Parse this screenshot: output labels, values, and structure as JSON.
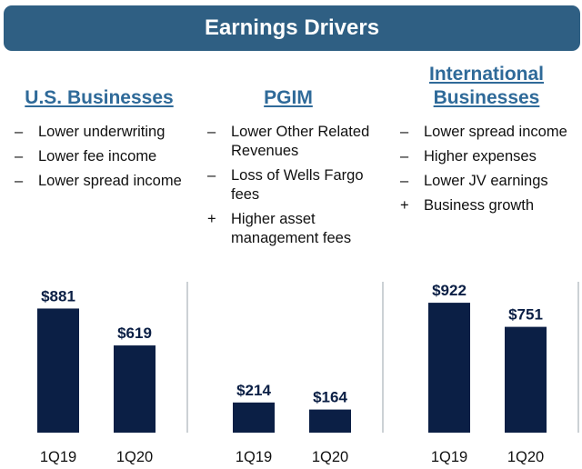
{
  "banner": {
    "title": "Earnings Drivers"
  },
  "sections": [
    {
      "title_lines": [
        "U.S. Businesses"
      ],
      "bullets": [
        {
          "symbol": "–",
          "text": "Lower underwriting"
        },
        {
          "symbol": "–",
          "text": "Lower fee income"
        },
        {
          "symbol": "–",
          "text": "Lower spread income"
        }
      ]
    },
    {
      "title_lines": [
        "PGIM"
      ],
      "bullets": [
        {
          "symbol": "–",
          "text": "Lower Other Related Revenues"
        },
        {
          "symbol": "–",
          "text": "Loss of Wells Fargo fees"
        },
        {
          "symbol": "+",
          "text": "Higher asset management fees"
        }
      ]
    },
    {
      "title_lines": [
        "International",
        "Businesses"
      ],
      "bullets": [
        {
          "symbol": "–",
          "text": "Lower spread income"
        },
        {
          "symbol": "–",
          "text": "Higher expenses"
        },
        {
          "symbol": "–",
          "text": "Lower JV earnings"
        },
        {
          "symbol": "+",
          "text": "Business growth"
        }
      ]
    }
  ],
  "chart_data": [
    {
      "type": "bar",
      "categories": [
        "1Q19",
        "1Q20"
      ],
      "values": [
        881,
        619
      ],
      "labels": [
        "$881",
        "$619"
      ],
      "ylim": [
        0,
        1000
      ],
      "grid": false
    },
    {
      "type": "bar",
      "categories": [
        "1Q19",
        "1Q20"
      ],
      "values": [
        214,
        164
      ],
      "labels": [
        "$214",
        "$164"
      ],
      "ylim": [
        0,
        1000
      ],
      "grid": false
    },
    {
      "type": "bar",
      "categories": [
        "1Q19",
        "1Q20"
      ],
      "values": [
        922,
        751
      ],
      "labels": [
        "$922",
        "$751"
      ],
      "ylim": [
        0,
        1000
      ],
      "grid": false
    }
  ],
  "colors": {
    "banner": "#2f5f83",
    "heading": "#2f6a99",
    "bar": "#0b1f45"
  }
}
